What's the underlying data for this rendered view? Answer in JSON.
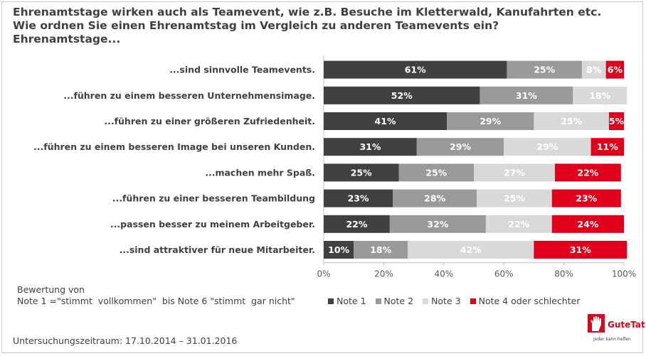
{
  "title": {
    "line1": "Ehrenamtstage wirken auch als Teamevent, wie z.B. Besuche im Kletterwald, Kanufahrten etc.",
    "line2": "Wie ordnen Sie einen Ehrenamtstag im Vergleich  zu anderen Teamevents ein?",
    "line3": "Ehrenamtstage..."
  },
  "chart_data": {
    "type": "bar",
    "orientation": "horizontal",
    "stacked": "percent",
    "categories": [
      "...sind sinnvolle Teamevents.",
      "...führen zu einem besseren Unternehmensimage.",
      "...führen zu einer größeren Zufriedenheit.",
      "...führen zu einem besseren Image bei unseren Kunden.",
      "...machen mehr Spaß.",
      "...führen zu einer besseren Teambildung",
      "...passen besser zu meinem Arbeitgeber.",
      "...sind attraktiver für neue Mitarbeiter."
    ],
    "series": [
      {
        "name": "Note 1",
        "color": "#404040",
        "text_color": "#ffffff",
        "values": [
          61,
          52,
          41,
          31,
          25,
          23,
          22,
          10
        ]
      },
      {
        "name": "Note 2",
        "color": "#9a9a9a",
        "text_color": "#ffffff",
        "values": [
          25,
          31,
          29,
          29,
          25,
          28,
          32,
          18
        ]
      },
      {
        "name": "Note 3",
        "color": "#d9d9d9",
        "text_color": "#ffffff",
        "values": [
          8,
          18,
          25,
          29,
          27,
          25,
          22,
          42
        ]
      },
      {
        "name": "Note 4 oder schlechter",
        "color": "#e0001b",
        "text_color": "#ffffff",
        "values": [
          6,
          0,
          5,
          11,
          22,
          23,
          24,
          31
        ]
      }
    ],
    "value_labels": [
      [
        "61%",
        "25%",
        "8%",
        "6%"
      ],
      [
        "52%",
        "31%",
        "18%",
        ""
      ],
      [
        "41%",
        "29%",
        "25%",
        "5%"
      ],
      [
        "31%",
        "29%",
        "29%",
        "11%"
      ],
      [
        "25%",
        "25%",
        "27%",
        "22%"
      ],
      [
        "23%",
        "28%",
        "25%",
        "23%"
      ],
      [
        "22%",
        "32%",
        "22%",
        "24%"
      ],
      [
        "10%",
        "18%",
        "42%",
        "31%"
      ]
    ],
    "xlim": [
      0,
      100
    ],
    "xticks": [
      "0%",
      "20%",
      "40%",
      "60%",
      "80%",
      "100%"
    ],
    "legend_position": "bottom"
  },
  "notes": {
    "line1": "Bewertung von",
    "line2": "Note 1 =\"stimmt  vollkommen\"  bis Note 6 \"stimmt  gar nicht\""
  },
  "footer": "Untersuchungszeitraum: 17.10.2014 – 31.01.2016",
  "logo": {
    "name": "GuteTat.de",
    "tagline": "Jeder kann helfen"
  }
}
